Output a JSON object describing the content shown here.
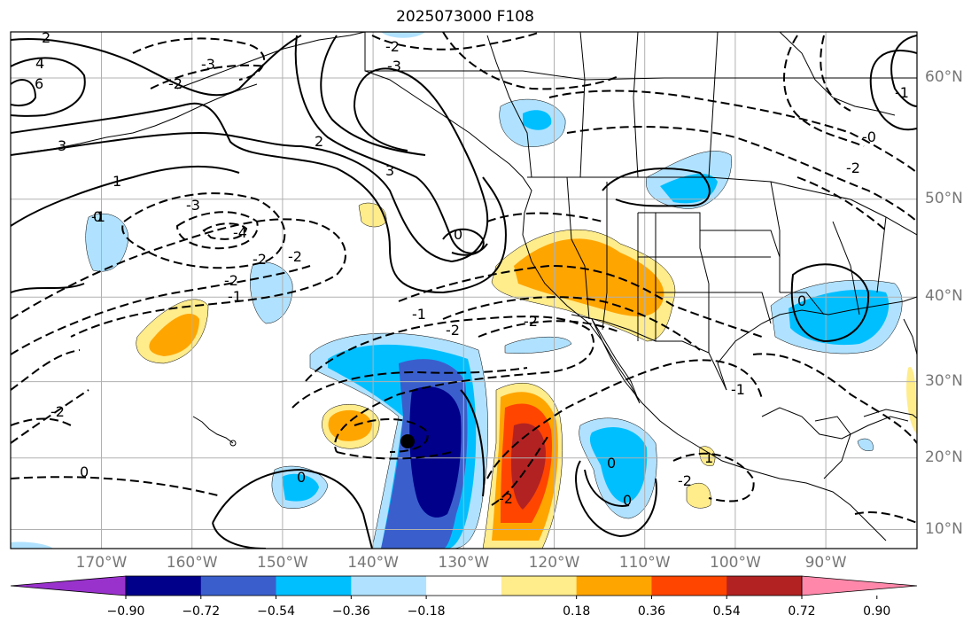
{
  "title": "2025073000 F108",
  "lat_labels": [
    {
      "label": "60°N",
      "lat": 60
    },
    {
      "label": "50°N",
      "lat": 50
    },
    {
      "label": "40°N",
      "lat": 40
    },
    {
      "label": "30°N",
      "lat": 30
    },
    {
      "label": "20°N",
      "lat": 20
    },
    {
      "label": "10°N",
      "lat": 10
    }
  ],
  "lon_labels": [
    {
      "label": "170°W",
      "lon": -170
    },
    {
      "label": "160°W",
      "lon": -160
    },
    {
      "label": "150°W",
      "lon": -150
    },
    {
      "label": "140°W",
      "lon": -140
    },
    {
      "label": "130°W",
      "lon": -130
    },
    {
      "label": "120°W",
      "lon": -120
    },
    {
      "label": "110°W",
      "lon": -110
    },
    {
      "label": "100°W",
      "lon": -100
    },
    {
      "label": "90°W",
      "lon": -90
    }
  ],
  "colorbar": {
    "ticks": [
      "−0.90",
      "−0.72",
      "−0.54",
      "−0.36",
      "−0.18",
      "0.18",
      "0.36",
      "0.54",
      "0.72",
      "0.90"
    ],
    "colors": [
      "#9932cc",
      "#00008b",
      "#3a5fcd",
      "#00bfff",
      "#b0e2ff",
      "#ffffff",
      "#ffec8b",
      "#ffa500",
      "#ff4500",
      "#b22222",
      "#ff88aa"
    ]
  },
  "contour_labels": [
    "2",
    "4",
    "6",
    "3",
    "-2",
    "-3",
    "1",
    "-1",
    "-2",
    "-2",
    "0",
    "-3",
    "-4",
    "-2",
    "-1",
    "-2",
    "0",
    "-2",
    "-1",
    "-2",
    "0",
    "0",
    "2",
    "3",
    "-3",
    "-2",
    "0",
    "0",
    "-2",
    "-2",
    "1",
    "0",
    "-1",
    "-2",
    "-0",
    "-1"
  ],
  "marker": {
    "label": "storm-center",
    "lat": 19.5,
    "lon": -136
  }
}
